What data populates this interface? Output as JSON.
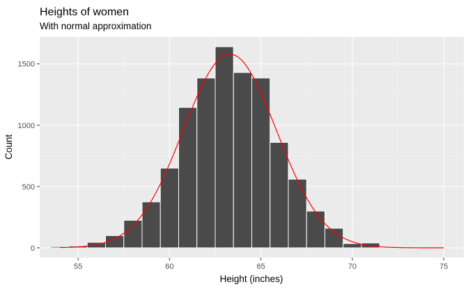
{
  "chart_data": {
    "type": "bar",
    "title": "Heights of women",
    "subtitle": "With normal approximation",
    "xlabel": "Height (inches)",
    "ylabel": "Count",
    "xlim": [
      52.9,
      76.1
    ],
    "ylim": [
      -80,
      1720
    ],
    "x_ticks": [
      55,
      60,
      65,
      70,
      75
    ],
    "y_ticks": [
      0,
      500,
      1000,
      1500
    ],
    "x_tick_labels": [
      "55",
      "60",
      "65",
      "70",
      "75"
    ],
    "y_tick_labels": [
      "0",
      "500",
      "1000",
      "1500"
    ],
    "bin_width": 1,
    "bins": [
      {
        "x": 54,
        "count": 10
      },
      {
        "x": 55,
        "count": 15
      },
      {
        "x": 56,
        "count": 45
      },
      {
        "x": 57,
        "count": 100
      },
      {
        "x": 58,
        "count": 225
      },
      {
        "x": 59,
        "count": 375
      },
      {
        "x": 60,
        "count": 650
      },
      {
        "x": 61,
        "count": 1145
      },
      {
        "x": 62,
        "count": 1385
      },
      {
        "x": 63,
        "count": 1640
      },
      {
        "x": 64,
        "count": 1430
      },
      {
        "x": 65,
        "count": 1385
      },
      {
        "x": 66,
        "count": 860
      },
      {
        "x": 67,
        "count": 560
      },
      {
        "x": 68,
        "count": 300
      },
      {
        "x": 69,
        "count": 160
      },
      {
        "x": 70,
        "count": 35
      },
      {
        "x": 71,
        "count": 40
      }
    ],
    "normal_curve": {
      "mean": 63.3,
      "sd": 2.55,
      "peak": 1580,
      "x_range": [
        54,
        75
      ],
      "color": "#ff0000"
    },
    "grid": true,
    "colors": {
      "bar": "#4a4a4a",
      "bar_border": "#ffffff",
      "panel": "#ebebeb",
      "grid_major": "#ffffff",
      "grid_minor": "#f5f5f5"
    }
  }
}
